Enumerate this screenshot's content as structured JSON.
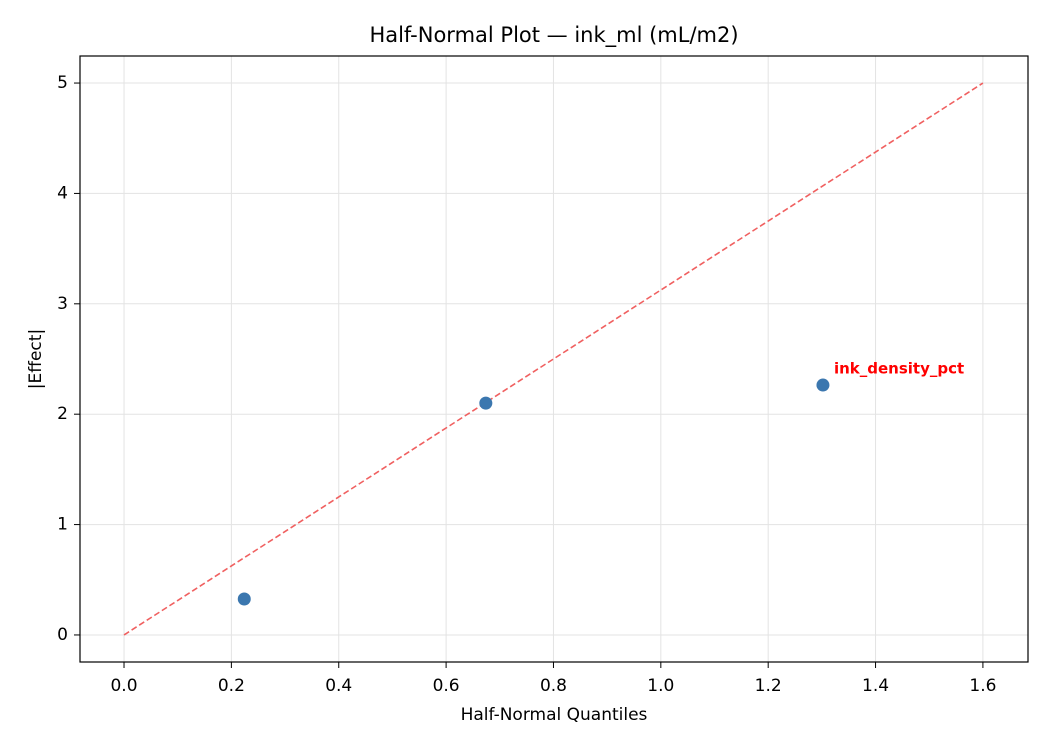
{
  "chart_data": {
    "type": "scatter",
    "title": "Half-Normal Plot — ink_ml (mL/m2)",
    "x_label": "Half-Normal Quantiles",
    "y_label": "|Effect|",
    "x": [
      0.224,
      0.674,
      1.302
    ],
    "values": [
      0.326,
      2.1,
      2.264
    ],
    "point_labels": [
      null,
      null,
      "ink_density_pct"
    ],
    "color": "#3b77af",
    "label_color": "#ff0000",
    "reference_line": {
      "x": [
        0,
        1.6
      ],
      "y": [
        0,
        5
      ],
      "color": "#f06060"
    },
    "xlim": [
      -0.082,
      1.684
    ],
    "ylim": [
      -0.245,
      5.245
    ],
    "xticks": [
      {
        "value": 0,
        "label": "0.0"
      },
      {
        "value": 0.2,
        "label": "0.2"
      },
      {
        "value": 0.4,
        "label": "0.4"
      },
      {
        "value": 0.6,
        "label": "0.6"
      },
      {
        "value": 0.8,
        "label": "0.8"
      },
      {
        "value": 1,
        "label": "1.0"
      },
      {
        "value": 1.2,
        "label": "1.2"
      },
      {
        "value": 1.4,
        "label": "1.4"
      },
      {
        "value": 1.6,
        "label": "1.6"
      }
    ],
    "yticks": [
      0,
      1,
      2,
      3,
      4,
      5
    ],
    "grid": true
  }
}
